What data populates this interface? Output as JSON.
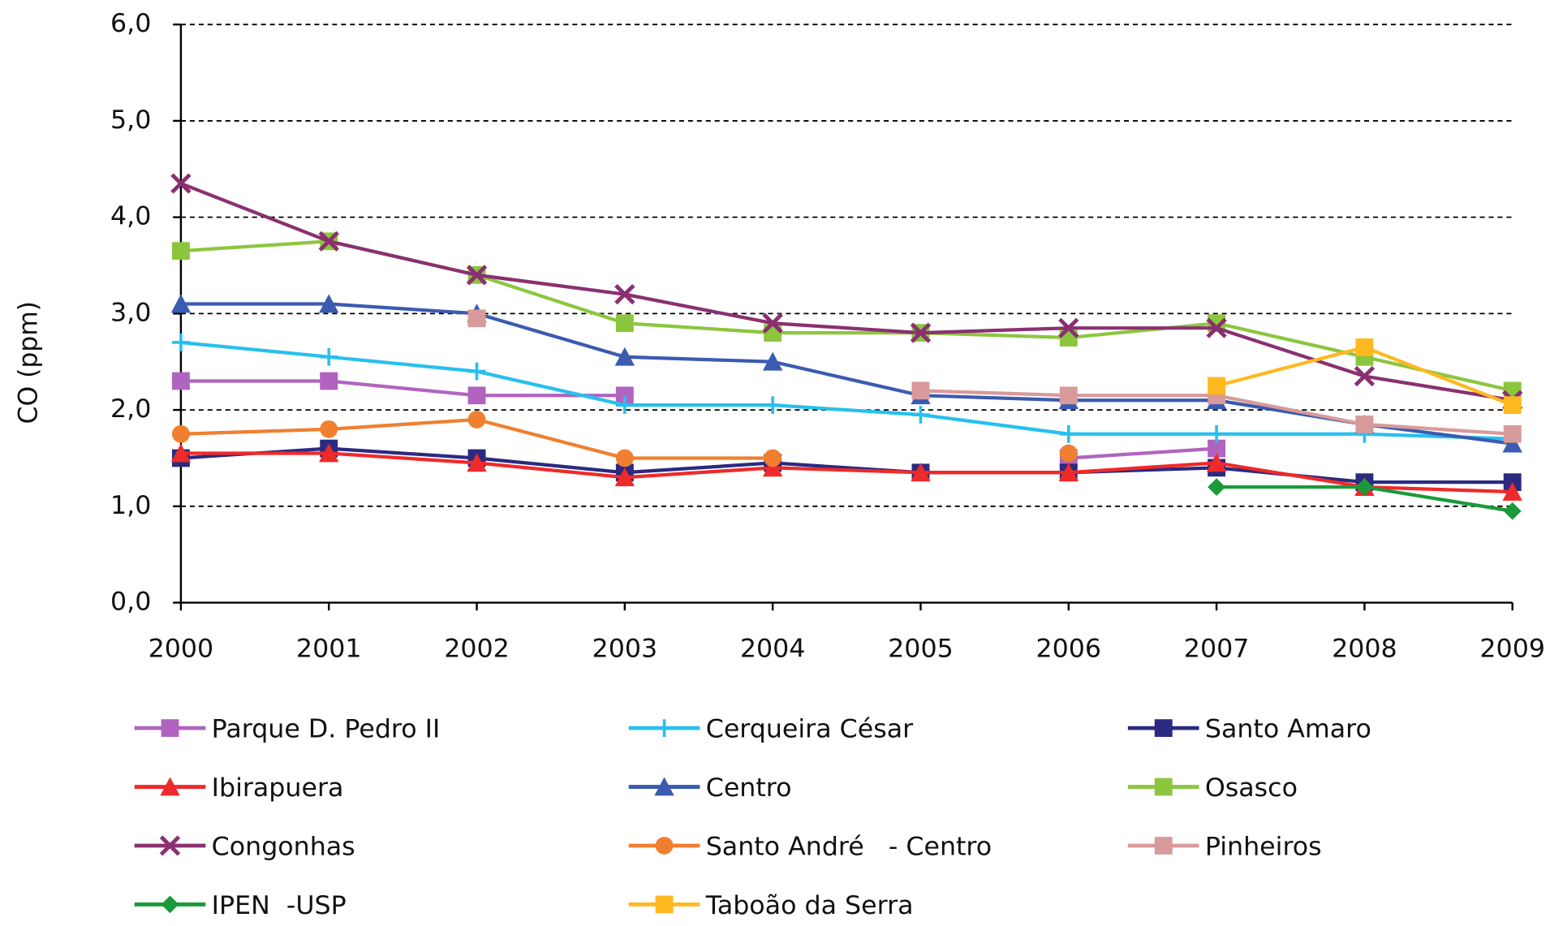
{
  "chart_data": {
    "type": "line",
    "y_label": "CO (ppm)",
    "categories": [
      "2000",
      "2001",
      "2002",
      "2003",
      "2004",
      "2005",
      "2006",
      "2007",
      "2008",
      "2009"
    ],
    "ylim": [
      0,
      6
    ],
    "yticks": [
      {
        "value": 0,
        "label": "0,0"
      },
      {
        "value": 1,
        "label": "1,0"
      },
      {
        "value": 2,
        "label": "2,0"
      },
      {
        "value": 3,
        "label": "3,0"
      },
      {
        "value": 4,
        "label": "4,0"
      },
      {
        "value": 5,
        "label": "5,0"
      },
      {
        "value": 6,
        "label": "6,0"
      }
    ],
    "grid": true,
    "legend": "bottom",
    "series": [
      {
        "name": "Parque D. Pedro II",
        "color": "#b064c0",
        "marker": "square",
        "values": [
          2.3,
          2.3,
          2.15,
          2.15,
          null,
          null,
          1.5,
          1.6,
          null,
          null
        ]
      },
      {
        "name": "Cerqueira César",
        "color": "#27c0ee",
        "marker": "plus",
        "values": [
          2.7,
          2.55,
          2.4,
          2.05,
          2.05,
          1.95,
          1.75,
          1.75,
          1.75,
          1.7
        ]
      },
      {
        "name": "Santo Amaro",
        "color": "#2b2a80",
        "marker": "square",
        "values": [
          1.5,
          1.6,
          1.5,
          1.35,
          1.45,
          1.35,
          1.35,
          1.4,
          1.25,
          1.25
        ]
      },
      {
        "name": "Ibirapuera",
        "color": "#ee2a2a",
        "marker": "triangle",
        "values": [
          1.55,
          1.55,
          1.45,
          1.3,
          1.4,
          1.35,
          1.35,
          1.45,
          1.2,
          1.15
        ]
      },
      {
        "name": "Centro",
        "color": "#3a5bb0",
        "marker": "triangle",
        "values": [
          3.1,
          3.1,
          3.0,
          2.55,
          2.5,
          2.15,
          2.1,
          2.1,
          1.85,
          1.65
        ]
      },
      {
        "name": "Osasco",
        "color": "#8cc63f",
        "marker": "square",
        "values": [
          3.65,
          3.75,
          3.4,
          2.9,
          2.8,
          2.8,
          2.75,
          2.9,
          2.55,
          2.2
        ]
      },
      {
        "name": "Congonhas",
        "color": "#8a3070",
        "marker": "x",
        "values": [
          4.35,
          3.75,
          3.4,
          3.2,
          2.9,
          2.8,
          2.85,
          2.85,
          2.35,
          2.1
        ]
      },
      {
        "name": "Santo André   - Centro",
        "color": "#f07f30",
        "marker": "circle",
        "values": [
          1.75,
          1.8,
          1.9,
          1.5,
          1.5,
          null,
          1.55,
          null,
          null,
          null
        ]
      },
      {
        "name": "Pinheiros",
        "color": "#d89a9a",
        "marker": "square",
        "values": [
          null,
          null,
          2.95,
          null,
          null,
          2.2,
          2.15,
          2.15,
          1.85,
          1.75
        ]
      },
      {
        "name": "IPEN  -USP",
        "color": "#1a9a3a",
        "marker": "diamond",
        "values": [
          null,
          null,
          null,
          null,
          null,
          null,
          null,
          1.2,
          1.2,
          0.95
        ]
      },
      {
        "name": "Taboão da Serra",
        "color": "#ffb820",
        "marker": "square",
        "values": [
          null,
          null,
          null,
          null,
          null,
          null,
          null,
          2.25,
          2.65,
          2.05
        ]
      }
    ]
  }
}
